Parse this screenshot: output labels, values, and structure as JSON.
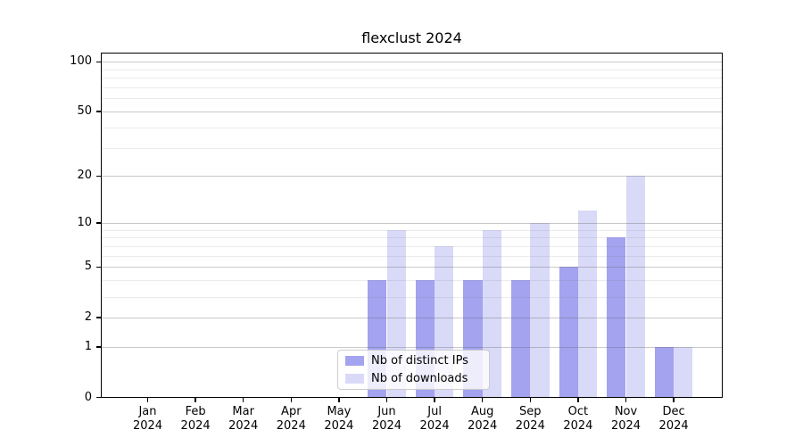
{
  "chart_data": {
    "type": "bar",
    "title": "flexclust 2024",
    "x_tick_line1": [
      "Jan",
      "Feb",
      "Mar",
      "Apr",
      "May",
      "Jun",
      "Jul",
      "Aug",
      "Sep",
      "Oct",
      "Nov",
      "Dec"
    ],
    "x_tick_line2": "2024",
    "categories": [
      "Jan 2024",
      "Feb 2024",
      "Mar 2024",
      "Apr 2024",
      "May 2024",
      "Jun 2024",
      "Jul 2024",
      "Aug 2024",
      "Sep 2024",
      "Oct 2024",
      "Nov 2024",
      "Dec 2024"
    ],
    "series": [
      {
        "name": "Nb of distinct IPs",
        "color": "#a3a3f0",
        "values": [
          0,
          0,
          0,
          0,
          0,
          4,
          4,
          4,
          4,
          5,
          8,
          1
        ]
      },
      {
        "name": "Nb of downloads",
        "color": "#d9d9f8",
        "values": [
          0,
          0,
          0,
          0,
          0,
          9,
          7,
          9,
          10,
          12,
          20,
          1
        ]
      }
    ],
    "y_scale": "log1p",
    "ylim": [
      0,
      114
    ],
    "y_major_ticks": [
      0,
      1,
      2,
      5,
      10,
      20,
      50,
      100
    ],
    "y_minor_gridlines": [
      3,
      4,
      6,
      7,
      8,
      9,
      30,
      40,
      60,
      70,
      80,
      90
    ],
    "grid": true,
    "legend_position": "lower-center"
  }
}
